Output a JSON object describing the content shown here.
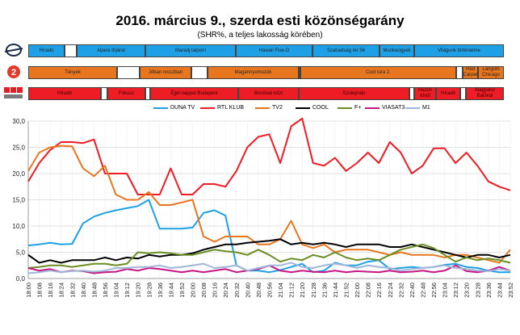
{
  "title": "2016. március 9., szerda esti közönségarány",
  "subtitle": "(SHR%, a teljes lakosság körében)",
  "program_rows": [
    {
      "channel": "DUNA TV",
      "color": "#1ea0e6",
      "programs": [
        {
          "label": "Híradó"
        },
        {
          "label": ""
        },
        {
          "label": "Alpesi őrjárat"
        },
        {
          "label": "Maradj talpon!"
        },
        {
          "label": "Hawaii Five-O"
        },
        {
          "label": "Szabadság tér 56"
        },
        {
          "label": "Munkaügyek"
        },
        {
          "label": "Világunk történelme"
        }
      ]
    },
    {
      "channel": "TV2",
      "color": "#e8761e",
      "programs": [
        {
          "label": "Tények"
        },
        {
          "label": ""
        },
        {
          "label": "Jóban rosszban"
        },
        {
          "label": ""
        },
        {
          "label": "Magánnyomozók"
        },
        {
          "label": ""
        },
        {
          "label": "Cool túra 2."
        },
        {
          "label": ""
        },
        {
          "label": "Red Carpet"
        },
        {
          "label": "Lángoló Chicago"
        }
      ]
    },
    {
      "channel": "RTL KLUB",
      "color": "#ee1c24",
      "programs": [
        {
          "label": "Híradó"
        },
        {
          "label": ""
        },
        {
          "label": "Fókusz"
        },
        {
          "label": ""
        },
        {
          "label": "Éjjel-nappal Budapest"
        },
        {
          "label": "Bordóak közt"
        },
        {
          "label": "Szulejmán"
        },
        {
          "label": ""
        },
        {
          "label": "Házon kívül"
        },
        {
          "label": "Híradó"
        },
        {
          "label": ""
        },
        {
          "label": "Magyarul Balóval"
        }
      ]
    }
  ],
  "chart_data": {
    "type": "line",
    "ylim": [
      0,
      30
    ],
    "yticks": [
      "0,0",
      "5,0",
      "10,0",
      "15,0",
      "20,0",
      "25,0",
      "30,0"
    ],
    "x": [
      "18:00",
      "18:08",
      "18:16",
      "18:24",
      "18:32",
      "18:40",
      "18:48",
      "18:56",
      "19:04",
      "19:12",
      "19:20",
      "19:28",
      "19:36",
      "19:44",
      "19:52",
      "20:00",
      "20:08",
      "20:16",
      "20:24",
      "20:32",
      "20:40",
      "20:48",
      "20:56",
      "21:04",
      "21:12",
      "21:20",
      "21:28",
      "21:36",
      "21:44",
      "21:52",
      "22:00",
      "22:08",
      "22:16",
      "22:24",
      "22:32",
      "22:40",
      "22:48",
      "22:56",
      "23:04",
      "23:12",
      "23:20",
      "23:28",
      "23:36",
      "23:44",
      "23:52"
    ],
    "grid": true,
    "legend_position": "top",
    "series": [
      {
        "name": "DUNA TV",
        "color": "#1ea0e6",
        "values": [
          6.3,
          6.5,
          6.8,
          6.5,
          6.6,
          10.5,
          11.8,
          12.5,
          13,
          13.4,
          13.8,
          15,
          9.5,
          9.5,
          9.5,
          9.7,
          12.5,
          13,
          12,
          2.5,
          1.5,
          1.5,
          1.2,
          1.6,
          2.2,
          2.8,
          1.2,
          1.5,
          3,
          2.5,
          2.5,
          3.2,
          3.5,
          1.8,
          2,
          2.2,
          2,
          2.2,
          2.6,
          2.8,
          2.2,
          2,
          1.5,
          1.2,
          1.2
        ]
      },
      {
        "name": "RTL KLUB",
        "color": "#ee1c24",
        "values": [
          18.5,
          22,
          24.5,
          26,
          26,
          25.8,
          26.5,
          20,
          20,
          20,
          16,
          16,
          16,
          21,
          16,
          16,
          18,
          18,
          17.5,
          20.5,
          25,
          27,
          27.5,
          22,
          29,
          30.5,
          22,
          21.5,
          23,
          20.5,
          22,
          24,
          22,
          26,
          24,
          20,
          21.5,
          24.8,
          24.8,
          22,
          24,
          21.5,
          18.5,
          17.5,
          16.8
        ]
      },
      {
        "name": "TV2",
        "color": "#e8761e",
        "values": [
          20.5,
          24,
          25,
          25.3,
          25.2,
          21,
          19.5,
          21.5,
          16,
          15,
          15,
          16.5,
          14,
          14,
          14.5,
          15,
          8,
          7,
          8,
          8,
          8,
          6.5,
          6.5,
          7.5,
          11,
          6.5,
          5.8,
          6.5,
          5,
          5.5,
          5.5,
          5.5,
          5,
          4.5,
          5,
          4.5,
          4.5,
          4.5,
          4,
          4.5,
          4.5,
          4,
          3.5,
          3,
          5.5
        ]
      },
      {
        "name": "COOL",
        "color": "#000000",
        "values": [
          4.5,
          3,
          3.5,
          3,
          3.5,
          3.5,
          3.5,
          4,
          3.5,
          4,
          3.8,
          4.5,
          4.2,
          4.5,
          4.5,
          4.8,
          5.5,
          6,
          6.5,
          6.5,
          6.8,
          7,
          7.2,
          7.5,
          6.5,
          6.8,
          6.5,
          6.8,
          6.5,
          6,
          6.5,
          6.5,
          6.5,
          6,
          6,
          6.5,
          6,
          5.5,
          5,
          4.5,
          4,
          4.5,
          4.5,
          4,
          4.5
        ]
      },
      {
        "name": "F+",
        "color": "#6b8e23",
        "values": [
          2,
          2.2,
          2.5,
          2.5,
          2.2,
          2.5,
          2.8,
          2.8,
          2.5,
          2.8,
          5,
          4.8,
          5,
          4.8,
          4.5,
          4.5,
          5,
          5.5,
          5.2,
          5,
          4.5,
          5.5,
          4.5,
          3.2,
          3.8,
          3.5,
          4.5,
          4,
          5,
          4,
          3.5,
          3.8,
          3.5,
          4.5,
          5.5,
          6,
          6.5,
          5.8,
          4.5,
          3.2,
          4,
          3.5,
          3.8,
          3.5,
          3
        ]
      },
      {
        "name": "VIASAT3",
        "color": "#c71585",
        "values": [
          2,
          1.5,
          1.8,
          1.2,
          1.5,
          1.4,
          1,
          1.2,
          1.3,
          1.8,
          1.5,
          2,
          1.8,
          1.5,
          1.2,
          1.5,
          1.2,
          1.5,
          1.8,
          1.2,
          1.5,
          1.8,
          2.5,
          1.5,
          1.2,
          1.5,
          1.3,
          1.2,
          1.5,
          1.2,
          1.4,
          1.3,
          1.2,
          1.5,
          1.2,
          1.3,
          1.5,
          1.2,
          1.5,
          2.5,
          1.4,
          1.2,
          1.5,
          2.2,
          1.5
        ]
      },
      {
        "name": "M1",
        "color": "#9fb7d8",
        "values": [
          1,
          1.2,
          1.5,
          1.2,
          1.4,
          1.5,
          1.3,
          1.5,
          2,
          2,
          2.2,
          2.2,
          2.5,
          2,
          2.2,
          2.5,
          2.8,
          2,
          2.2,
          2.5,
          1.5,
          2,
          2.5,
          2.5,
          3,
          2.2,
          2,
          2.5,
          2.8,
          2.5,
          2,
          2.5,
          2.2,
          2,
          1.5,
          1.8,
          2,
          2.2,
          2.5,
          2,
          1.8,
          1.5,
          1.4,
          1.8,
          1.5
        ]
      }
    ]
  }
}
